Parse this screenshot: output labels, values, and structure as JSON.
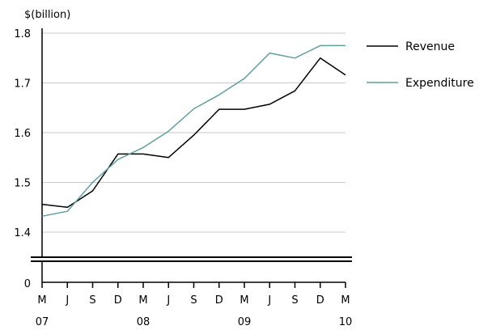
{
  "chart_data": {
    "type": "line",
    "title": "",
    "ylabel": "$(billion)",
    "xlabel": "",
    "ylim": [
      1.4,
      1.8
    ],
    "yticks": [
      "1.8",
      "1.7",
      "1.6",
      "1.5",
      "1.4"
    ],
    "ytick_values": [
      1.8,
      1.7,
      1.6,
      1.5,
      1.4
    ],
    "axis_break": true,
    "axis_zero_label": "0",
    "grid": true,
    "legend_position": "right",
    "x_month_labels": [
      "M",
      "J",
      "S",
      "D",
      "M",
      "J",
      "S",
      "D",
      "M",
      "J",
      "S",
      "D",
      "M"
    ],
    "x_year_labels": [
      {
        "label": "07",
        "index": 0
      },
      {
        "label": "08",
        "index": 4
      },
      {
        "label": "09",
        "index": 8
      },
      {
        "label": "10",
        "index": 12
      }
    ],
    "series": [
      {
        "name": "Revenue",
        "color": "#000000",
        "values": [
          1.456,
          1.45,
          1.483,
          1.557,
          1.557,
          1.55,
          1.595,
          1.647,
          1.647,
          1.657,
          1.684,
          1.75,
          1.716
        ]
      },
      {
        "name": "Expenditure",
        "color": "#5f9ea0",
        "values": [
          1.432,
          1.442,
          1.5,
          1.546,
          1.57,
          1.603,
          1.648,
          1.676,
          1.709,
          1.76,
          1.75,
          1.775,
          1.775
        ]
      }
    ]
  }
}
